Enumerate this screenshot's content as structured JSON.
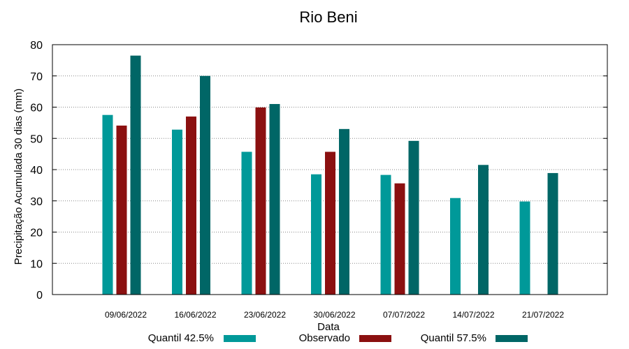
{
  "chart_data": {
    "type": "bar",
    "title": "Rio Beni",
    "xlabel": "Data",
    "ylabel": "Precipitação Acumulada 30 dias (mm)",
    "ylim": [
      0,
      80
    ],
    "yticks": [
      0,
      10,
      20,
      30,
      40,
      50,
      60,
      70,
      80
    ],
    "grid": true,
    "legend_position": "bottom",
    "categories": [
      "09/06/2022",
      "16/06/2022",
      "23/06/2022",
      "30/06/2022",
      "07/07/2022",
      "14/07/2022",
      "21/07/2022"
    ],
    "series": [
      {
        "name": "Quantil 42.5%",
        "color": "#009999",
        "values": [
          57.5,
          52.8,
          45.7,
          38.5,
          38.3,
          30.9,
          29.8
        ]
      },
      {
        "name": "Observado",
        "color": "#8b1010",
        "values": [
          54.1,
          57.0,
          59.9,
          45.7,
          35.6,
          null,
          null
        ]
      },
      {
        "name": "Quantil 57.5%",
        "color": "#006666",
        "values": [
          76.5,
          70.0,
          61.0,
          53.0,
          49.2,
          41.5,
          38.9
        ]
      }
    ]
  }
}
